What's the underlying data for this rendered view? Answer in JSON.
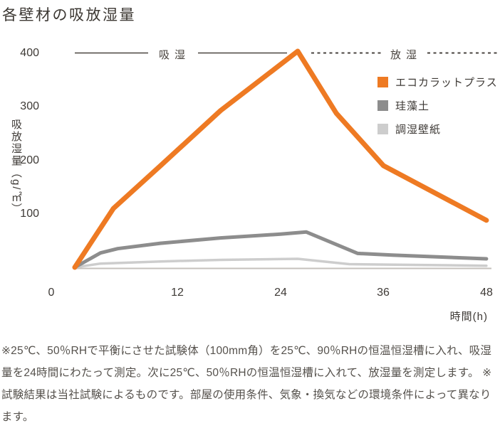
{
  "title": "各壁材の吸放湿量",
  "chart_data": {
    "type": "line",
    "title": "各壁材の吸放湿量",
    "xlabel": "時間(h)",
    "ylabel": "吸放湿量（g/㎡）",
    "xlim": [
      0,
      48
    ],
    "ylim": [
      0,
      400
    ],
    "x_ticks": [
      0,
      12,
      24,
      36,
      48
    ],
    "y_ticks": [
      400,
      300,
      200,
      100
    ],
    "grid": false,
    "legend_position": "right",
    "phase_labels": {
      "absorption": "吸湿",
      "desorption": "放湿"
    },
    "series": [
      {
        "name": "エコカラットプラス",
        "color": "#ee7a23",
        "points": [
          [
            0,
            0
          ],
          [
            4.5,
            110
          ],
          [
            10,
            190
          ],
          [
            17,
            293
          ],
          [
            26,
            404
          ],
          [
            30.5,
            288
          ],
          [
            36,
            190
          ],
          [
            48,
            88
          ]
        ]
      },
      {
        "name": "珪藻土",
        "color": "#8d8d8d",
        "points": [
          [
            0,
            0
          ],
          [
            3,
            27
          ],
          [
            5,
            35
          ],
          [
            10,
            45
          ],
          [
            17,
            55
          ],
          [
            24,
            62
          ],
          [
            27,
            66
          ],
          [
            33,
            26
          ],
          [
            37,
            23
          ],
          [
            48,
            16
          ]
        ]
      },
      {
        "name": "調湿壁紙",
        "color": "#cdcdcd",
        "points": [
          [
            0,
            0
          ],
          [
            3,
            7
          ],
          [
            10,
            11
          ],
          [
            17,
            14
          ],
          [
            26,
            16
          ],
          [
            32,
            6
          ],
          [
            48,
            3
          ]
        ]
      }
    ]
  },
  "footnote": "※25℃、50％RHで平衡にさせた試験体（100mm角）を25℃、90％RHの恒温恒湿槽に入れ、吸湿量を24時間にわたって測定。次に25℃、50％RHの恒温恒湿槽に入れて、放湿量を測定します。 ※試験結果は当社試験によるものです。部屋の使用条件、気象・換気などの環境条件によって異なります。",
  "colors": {
    "accent_orange": "#ee7a23",
    "series_gray": "#8d8d8d",
    "series_light_gray": "#cdcdcd",
    "axis_line": "#c5c1bc",
    "divider_line": "#4a4540",
    "text": "#3e3a36"
  }
}
